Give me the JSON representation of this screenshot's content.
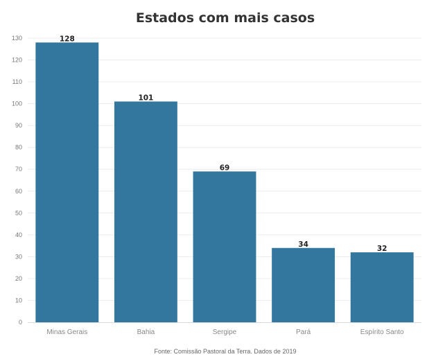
{
  "chart_data": {
    "type": "bar",
    "title": "Estados com mais casos",
    "categories": [
      "Minas Gerais",
      "Bahia",
      "Sergipe",
      "Pará",
      "Espírito Santo"
    ],
    "values": [
      128,
      101,
      69,
      34,
      32
    ],
    "value_labels": [
      "128",
      "101",
      "69",
      "34",
      "32"
    ],
    "ylim": [
      0,
      130
    ],
    "yticks": [
      0,
      10,
      20,
      30,
      40,
      50,
      60,
      70,
      80,
      90,
      100,
      110,
      120,
      130
    ],
    "grid": true,
    "bar_color": "#34779e",
    "xlabel": "",
    "ylabel": ""
  },
  "source_note": "Fonte: Comissão Pastoral da Terra. Dados de 2019"
}
